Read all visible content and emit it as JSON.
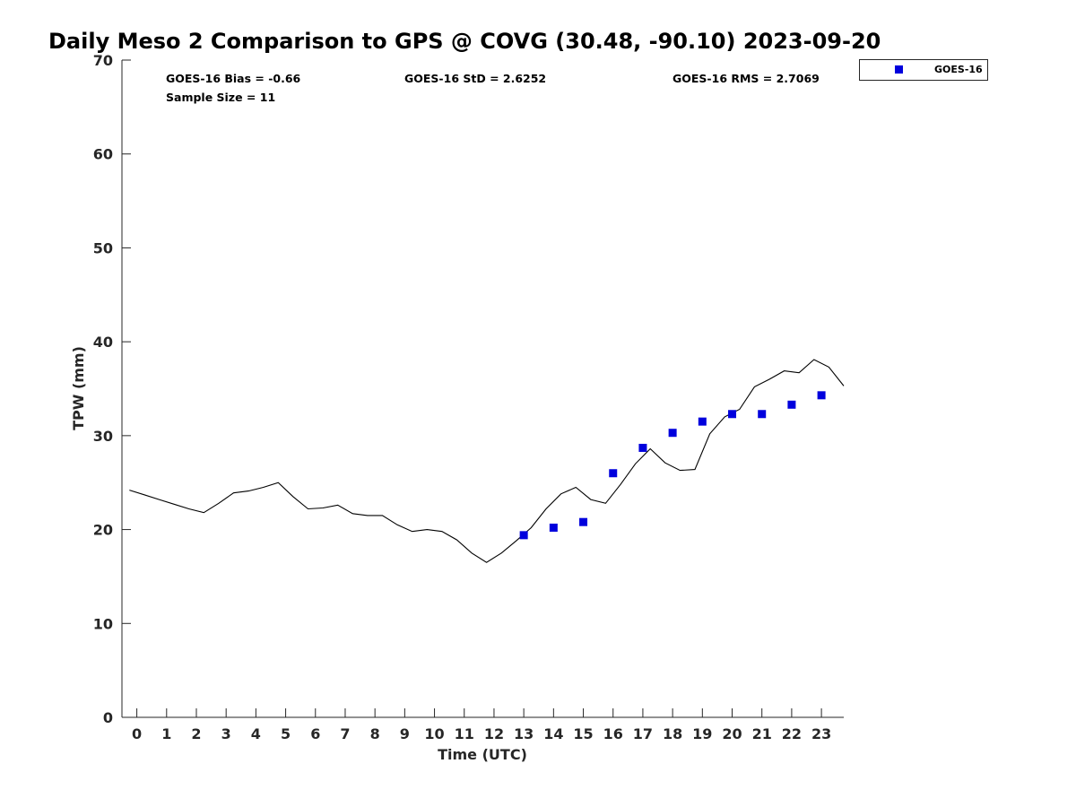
{
  "chart_data": {
    "type": "line",
    "title": "Daily Meso 2 Comparison to GPS @ COVG (30.48, -90.10) 2023-09-20",
    "xlabel": "Time (UTC)",
    "ylabel": "TPW (mm)",
    "xlim": [
      -0.5,
      23.75
    ],
    "ylim": [
      0,
      70
    ],
    "x_ticks": [
      0,
      1,
      2,
      3,
      4,
      5,
      6,
      7,
      8,
      9,
      10,
      11,
      12,
      13,
      14,
      15,
      16,
      17,
      18,
      19,
      20,
      21,
      22,
      23
    ],
    "y_ticks": [
      0,
      10,
      20,
      30,
      40,
      50,
      60,
      70
    ],
    "grid": false,
    "legend_position": "top-right",
    "stats": {
      "bias": "GOES-16 Bias = -0.66",
      "std": "GOES-16 StD = 2.6252",
      "rms": "GOES-16 RMS = 2.7069",
      "sample_size": "Sample Size = 11"
    },
    "series": [
      {
        "style": "line",
        "color": "#000000",
        "x": [
          -0.25,
          0.25,
          0.75,
          1.25,
          1.75,
          2.25,
          2.75,
          3.25,
          3.75,
          4.25,
          4.75,
          5.25,
          5.75,
          6.25,
          6.75,
          7.25,
          7.75,
          8.25,
          8.75,
          9.25,
          9.75,
          10.25,
          10.75,
          11.25,
          11.75,
          12.25,
          12.75,
          13.25,
          13.75,
          14.25,
          14.75,
          15.25,
          15.75,
          16.25,
          16.75,
          17.25,
          17.75,
          18.25,
          18.75,
          19.25,
          19.75,
          20.25,
          20.75,
          21.25,
          21.75,
          22.25,
          22.75,
          23.25,
          23.75
        ],
        "y": [
          24.2,
          23.7,
          23.2,
          22.7,
          22.2,
          21.8,
          22.8,
          23.9,
          24.1,
          24.5,
          25.0,
          23.5,
          22.2,
          22.3,
          22.6,
          21.7,
          21.5,
          21.5,
          20.5,
          19.8,
          20.0,
          19.8,
          18.9,
          17.5,
          16.5,
          17.5,
          18.8,
          20.2,
          22.2,
          23.8,
          24.5,
          23.2,
          22.8,
          24.8,
          27.0,
          28.6,
          27.1,
          26.3,
          26.4,
          30.2,
          32.0,
          32.8,
          35.2,
          36.0,
          36.9,
          36.7,
          38.1,
          37.3,
          35.3
        ]
      },
      {
        "name": "GOES-16",
        "style": "markers",
        "marker": "square",
        "color": "#0000dd",
        "x": [
          13,
          14,
          15,
          16,
          17,
          18,
          19,
          20,
          21,
          22,
          23
        ],
        "y": [
          19.4,
          20.2,
          20.8,
          26.0,
          28.7,
          30.3,
          31.5,
          32.3,
          32.3,
          33.3,
          34.3
        ]
      }
    ]
  }
}
